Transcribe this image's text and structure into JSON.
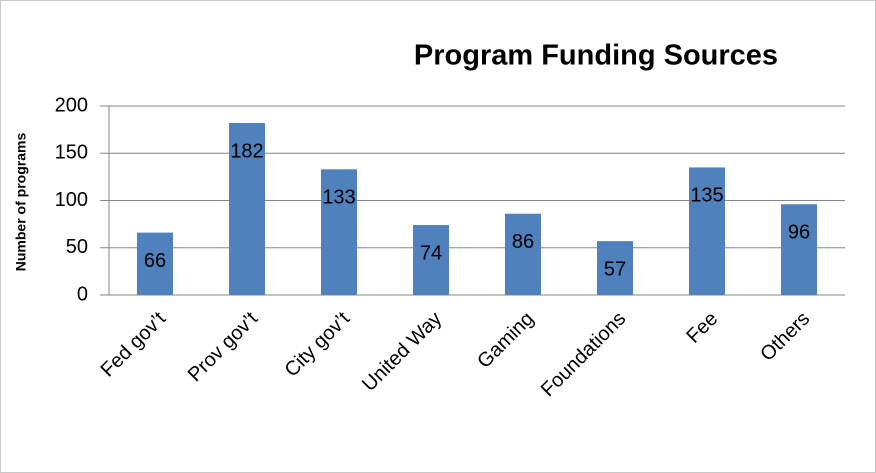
{
  "chart_data": {
    "type": "bar",
    "title": "Program Funding Sources",
    "y_label": "Number of programs",
    "categories": [
      "Fed gov’t",
      "Prov gov’t",
      "City gov’t",
      "United Way",
      "Gaming",
      "Foundations",
      "Fee",
      "Others"
    ],
    "values": [
      66,
      182,
      133,
      74,
      86,
      57,
      135,
      96
    ],
    "color": "#4f81bd",
    "ylim": [
      0,
      200
    ],
    "yticks": [
      0,
      50,
      100,
      150,
      200
    ],
    "grid": true
  }
}
